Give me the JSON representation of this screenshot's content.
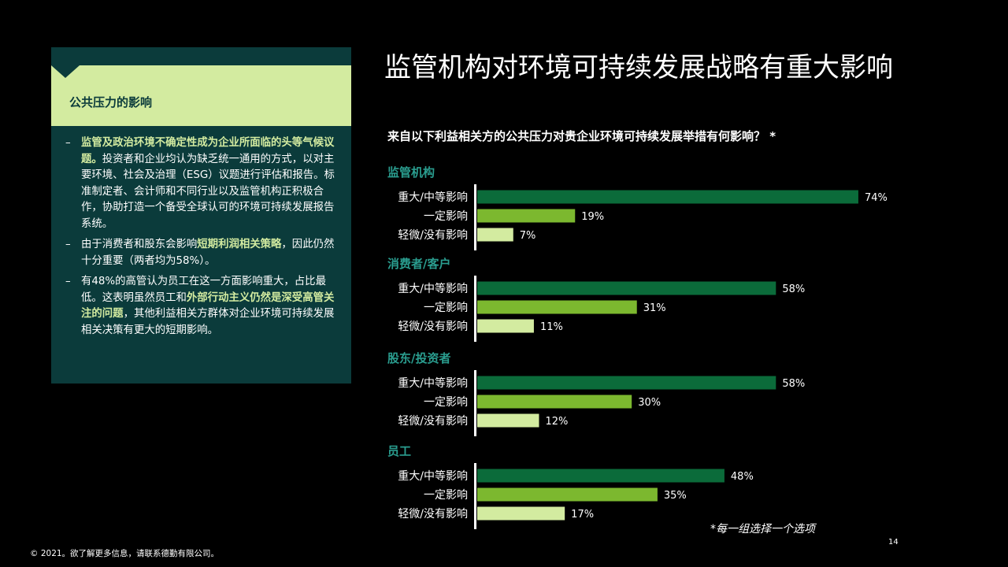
{
  "panel": {
    "title": "公共压力的影响",
    "bullets": [
      {
        "parts": [
          {
            "text": "监管及政治环境不确定性成为企业所面临的头等气候议题。",
            "hl": true
          },
          {
            "text": "投资者和企业均认为缺乏统一通用的方式，以对主要环境、社会及治理（ESG）议题进行评估和报告。标准制定者、会计师和不同行业以及监管机构正积极合作，协助打造一个备受全球认可的环境可持续发展报告系统。",
            "hl": false
          }
        ]
      },
      {
        "parts": [
          {
            "text": "由于消费者和股东会影响",
            "hl": false
          },
          {
            "text": "短期利润相关策略",
            "hl": true
          },
          {
            "text": "，因此仍然十分重要（两者均为58%）。",
            "hl": false
          }
        ]
      },
      {
        "parts": [
          {
            "text": "有48%的高管认为员工在这一方面影响重大，占比最低。这表明虽然员工和",
            "hl": false
          },
          {
            "text": "外部行动主义仍然是深受高管关注的问题",
            "hl": true
          },
          {
            "text": "，其他利益相关方群体对企业环境可持续发展相关决策有更大的短期影响。",
            "hl": false
          }
        ]
      }
    ]
  },
  "title": "监管机构对环境可持续发展战略有重大影响",
  "question": "来自以下利益相关方的公共压力对贵企业环境可持续发展举措有何影响？ *",
  "footnote": "*每一组选择一个选项",
  "copyright": "© 2021。欲了解更多信息，请联系德勤有限公司。",
  "page_number": "14",
  "colors": {
    "background": "#000000",
    "panel": "#0b3b3b",
    "panel_header": "#d3eba0",
    "group_label": "#2a9d8f",
    "bar_major": "#0b6b3a",
    "bar_some": "#7cb82f",
    "bar_minor": "#d3eba0"
  },
  "chart_data": {
    "type": "bar",
    "orientation": "horizontal",
    "value_suffix": "%",
    "xlim": [
      0,
      100
    ],
    "groups": [
      {
        "name": "监管机构",
        "bars": [
          {
            "label": "重大/中等影响",
            "value": 74,
            "level": "major"
          },
          {
            "label": "一定影响",
            "value": 19,
            "level": "some"
          },
          {
            "label": "轻微/没有影响",
            "value": 7,
            "level": "minor"
          }
        ]
      },
      {
        "name": "消费者/客户",
        "bars": [
          {
            "label": "重大/中等影响",
            "value": 58,
            "level": "major"
          },
          {
            "label": "一定影响",
            "value": 31,
            "level": "some"
          },
          {
            "label": "轻微/没有影响",
            "value": 11,
            "level": "minor"
          }
        ]
      },
      {
        "name": "股东/投资者",
        "bars": [
          {
            "label": "重大/中等影响",
            "value": 58,
            "level": "major"
          },
          {
            "label": "一定影响",
            "value": 30,
            "level": "some"
          },
          {
            "label": "轻微/没有影响",
            "value": 12,
            "level": "minor"
          }
        ]
      },
      {
        "name": "员工",
        "bars": [
          {
            "label": "重大/中等影响",
            "value": 48,
            "level": "major"
          },
          {
            "label": "一定影响",
            "value": 35,
            "level": "some"
          },
          {
            "label": "轻微/没有影响",
            "value": 17,
            "level": "minor"
          }
        ]
      }
    ]
  }
}
